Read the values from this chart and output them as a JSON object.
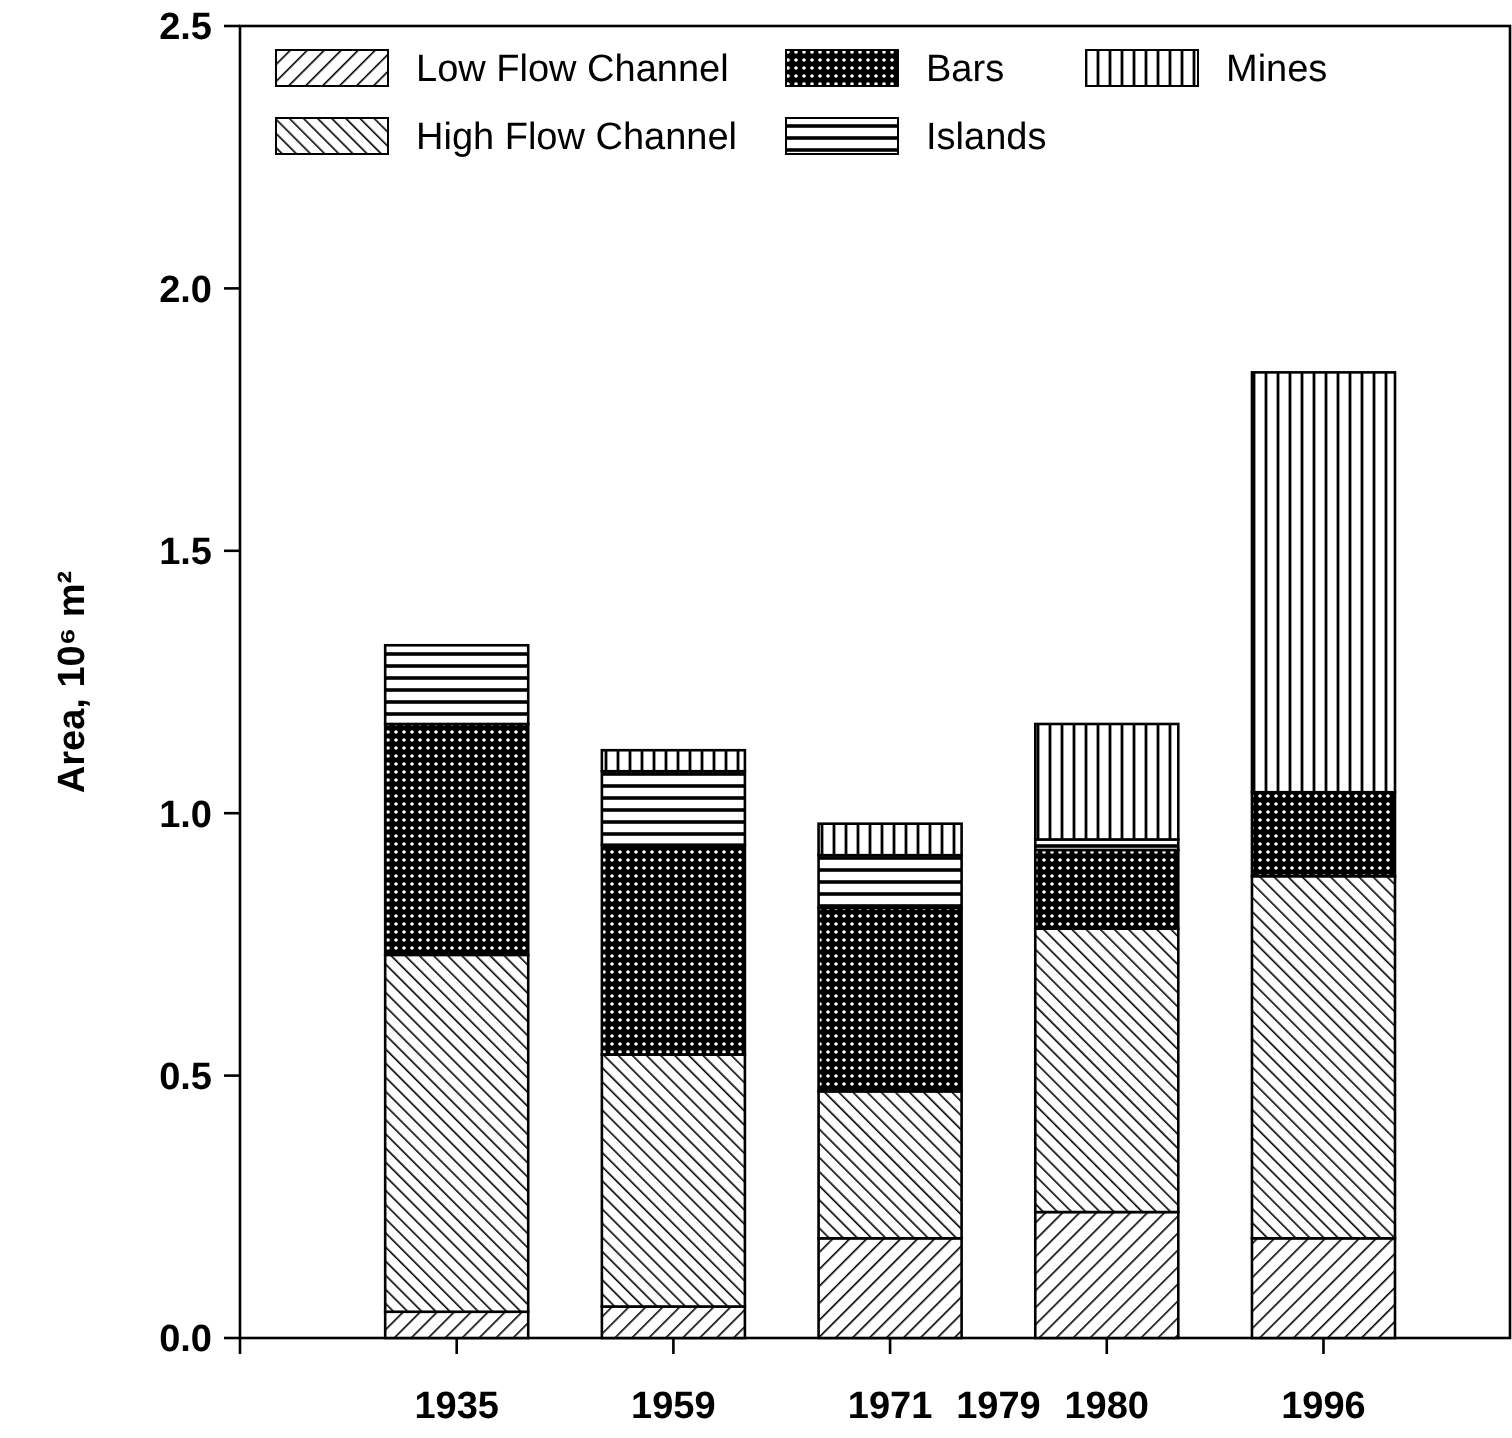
{
  "chart_data": {
    "type": "bar",
    "stacked": true,
    "ylabel": "Area, 10⁶ m²",
    "categories": [
      "1935",
      "1959",
      "1971",
      "1980",
      "1996"
    ],
    "series": [
      {
        "name": "Low Flow Channel",
        "color": "#000000",
        "values": [
          0.05,
          0.06,
          0.19,
          0.24,
          0.19
        ]
      },
      {
        "name": "High Flow Channel",
        "color": "#000000",
        "values": [
          0.68,
          0.48,
          0.28,
          0.54,
          0.69
        ]
      },
      {
        "name": "Bars",
        "color": "#000000",
        "values": [
          0.44,
          0.4,
          0.35,
          0.15,
          0.16
        ]
      },
      {
        "name": "Islands",
        "color": "#000000",
        "values": [
          0.15,
          0.14,
          0.1,
          0.02,
          0
        ]
      },
      {
        "name": "Mines",
        "color": "#000000",
        "values": [
          0,
          0.04,
          0.06,
          0.22,
          0.8
        ]
      }
    ],
    "ylim": [
      0,
      2.5
    ],
    "yticks": [
      {
        "value": 0,
        "label": "0.0"
      },
      {
        "value": 0.5,
        "label": "0.5"
      },
      {
        "value": 1,
        "label": "1.0"
      },
      {
        "value": 1.5,
        "label": "1.5"
      },
      {
        "value": 2,
        "label": "2.0"
      },
      {
        "value": 2.5,
        "label": "2.5"
      }
    ],
    "annotations": [
      "1979"
    ],
    "legend": "top",
    "grid": false
  }
}
